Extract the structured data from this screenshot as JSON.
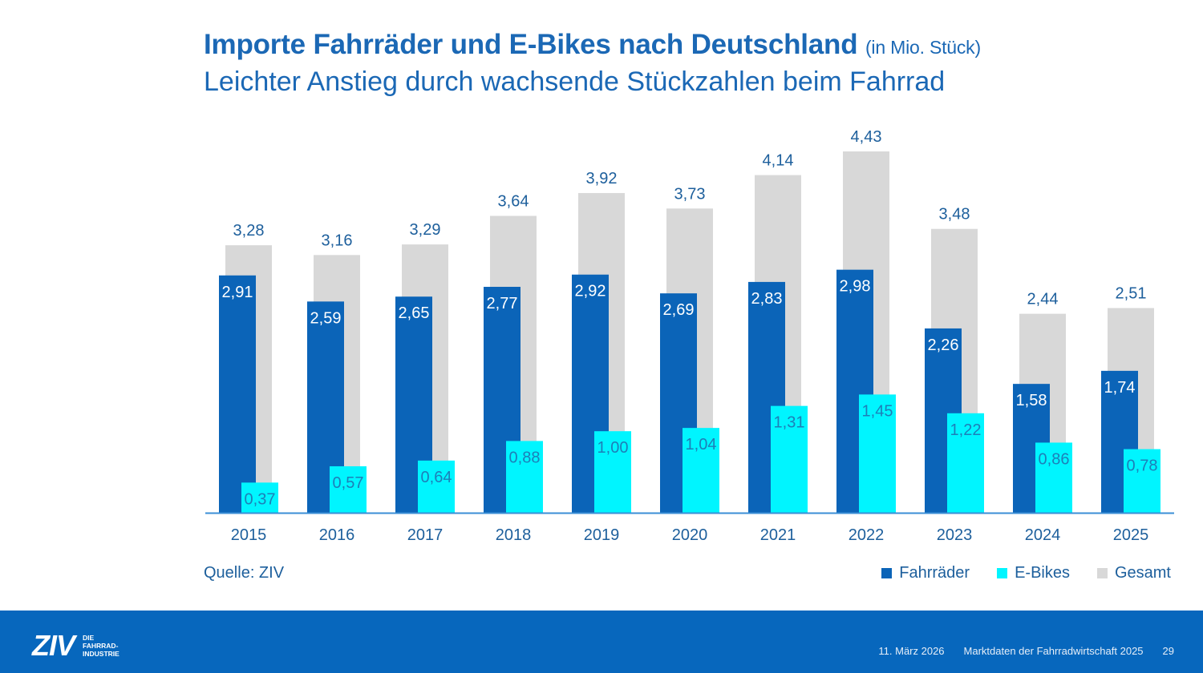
{
  "header": {
    "title": "Importe Fahrräder und E-Bikes nach Deutschland",
    "title_unit": "(in Mio. Stück)",
    "subtitle": "Leichter Anstieg durch wachsende Stückzahlen beim Fahrrad"
  },
  "source": "Quelle: ZIV",
  "legend": [
    {
      "label": "Fahrräder",
      "color": "#0b64b8"
    },
    {
      "label": "E-Bikes",
      "color": "#00f5ff"
    },
    {
      "label": "Gesamt",
      "color": "#d8d8d8"
    }
  ],
  "footer": {
    "logo_main": "ZIV",
    "logo_sub_1": "DIE",
    "logo_sub_2": "FAHRRAD-",
    "logo_sub_3": "INDUSTRIE",
    "date": "11. März 2026",
    "doc_title": "Marktdaten der Fahrradwirtschaft 2025",
    "page": "29"
  },
  "chart_data": {
    "type": "bar",
    "title": "Importe Fahrräder und E-Bikes nach Deutschland",
    "subtitle": "Leichter Anstieg durch wachsende Stückzahlen beim Fahrrad",
    "unit": "Mio. Stück",
    "xlabel": "",
    "ylabel": "",
    "ylim": [
      0,
      4.43
    ],
    "grid": false,
    "legend_position": "bottom-right",
    "decimal_separator": ",",
    "categories": [
      "2015",
      "2016",
      "2017",
      "2018",
      "2019",
      "2020",
      "2021",
      "2022",
      "2023",
      "2024",
      "2025"
    ],
    "series": [
      {
        "name": "Gesamt",
        "color": "#d8d8d8",
        "label_color": "#1d5f9c",
        "values": [
          3.28,
          3.16,
          3.29,
          3.64,
          3.92,
          3.73,
          4.14,
          4.43,
          3.48,
          2.44,
          2.51
        ]
      },
      {
        "name": "Fahrräder",
        "color": "#0b64b8",
        "label_color": "#ffffff",
        "values": [
          2.91,
          2.59,
          2.65,
          2.77,
          2.92,
          2.69,
          2.83,
          2.98,
          2.26,
          1.58,
          1.74
        ]
      },
      {
        "name": "E-Bikes",
        "color": "#00f5ff",
        "label_color": "#1d7fb8",
        "values": [
          0.37,
          0.57,
          0.64,
          0.88,
          1.0,
          1.04,
          1.31,
          1.45,
          1.22,
          0.86,
          0.78
        ]
      }
    ],
    "axis_color": "#3b8fd6",
    "tick_label_color": "#1d5f9c"
  }
}
